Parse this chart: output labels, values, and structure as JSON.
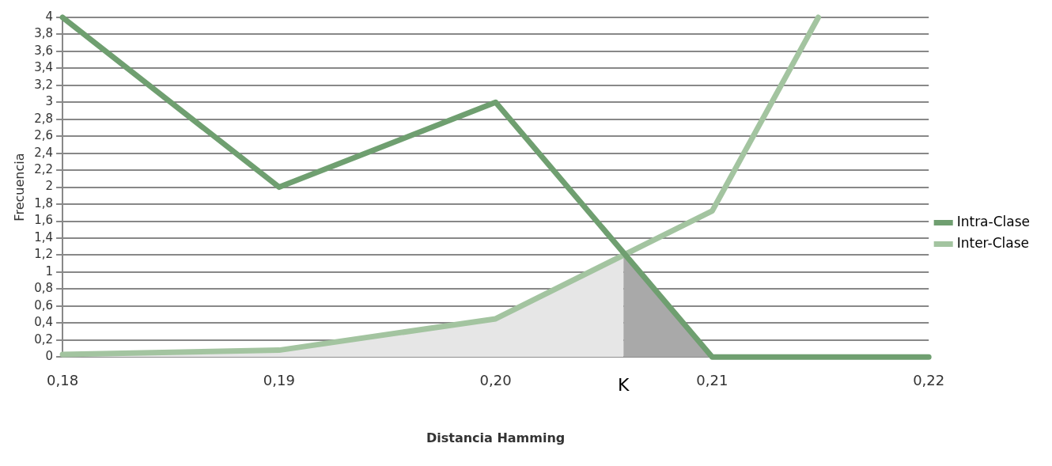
{
  "chart_data": {
    "type": "line",
    "xlabel": "Distancia Hamming",
    "ylabel": "Frecuencia",
    "xlim": [
      0.18,
      0.22
    ],
    "xticks": [
      {
        "value": 0.18,
        "label": "0,18"
      },
      {
        "value": 0.19,
        "label": "0,19"
      },
      {
        "value": 0.2,
        "label": "0,20"
      },
      {
        "value": 0.21,
        "label": "0,21"
      },
      {
        "value": 0.22,
        "label": "0,22"
      }
    ],
    "ylim": [
      0,
      4
    ],
    "yticks": [
      0,
      {
        "value": 0.2,
        "label": "0,2"
      },
      {
        "value": 0.4,
        "label": "0,4"
      },
      {
        "value": 0.6,
        "label": "0,6"
      },
      {
        "value": 0.8,
        "label": "0,8"
      },
      1,
      {
        "value": 1.2,
        "label": "1,2"
      },
      {
        "value": 1.4,
        "label": "1,4"
      },
      {
        "value": 1.6,
        "label": "1,6"
      },
      {
        "value": 1.8,
        "label": "1,8"
      },
      2,
      {
        "value": 2.2,
        "label": "2,2"
      },
      {
        "value": 2.4,
        "label": "2,4"
      },
      {
        "value": 2.6,
        "label": "2,6"
      },
      {
        "value": 2.8,
        "label": "2,8"
      },
      3,
      {
        "value": 3.2,
        "label": "3,2"
      },
      {
        "value": 3.4,
        "label": "3,4"
      },
      {
        "value": 3.6,
        "label": "3,6"
      },
      {
        "value": 3.8,
        "label": "3,8"
      },
      4
    ],
    "series": [
      {
        "type": "area",
        "color": "#e6e6e6",
        "x": [
          0.18,
          0.19,
          0.2,
          0.2059
        ],
        "values": [
          0.03,
          0.08,
          0.45,
          1.2
        ]
      },
      {
        "type": "area",
        "color": "#a9a9a9",
        "x": [
          0.2059,
          0.21
        ],
        "values": [
          1.2,
          0
        ]
      },
      {
        "name": "Intra-Clase",
        "color": "#6f9f70",
        "x": [
          0.18,
          0.19,
          0.2,
          0.21,
          0.22
        ],
        "values": [
          4,
          2,
          3,
          0,
          0
        ]
      },
      {
        "name": "Inter-Clase",
        "color": "#a3c4a0",
        "x": [
          0.18,
          0.19,
          0.2,
          0.21,
          0.2149
        ],
        "values": [
          0.03,
          0.08,
          0.45,
          1.72,
          4
        ]
      }
    ],
    "annotations": [
      {
        "text": "K",
        "x": 0.2059,
        "y": 0
      }
    ],
    "grid": "y",
    "legend": "right",
    "marker": "none",
    "line_style": "solid"
  }
}
